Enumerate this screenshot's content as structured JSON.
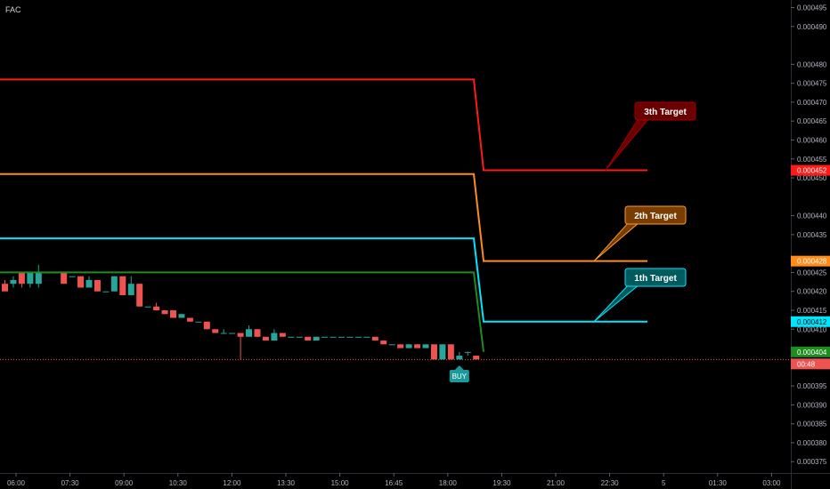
{
  "header": {
    "symbol": "FAC"
  },
  "chart_data": {
    "type": "candlestick",
    "ylim": [
      0.000372,
      0.000497
    ],
    "y_ticks": [
      "0.000495",
      "0.000490",
      "0.000480",
      "0.000475",
      "0.000470",
      "0.000465",
      "0.000460",
      "0.000455",
      "0.000450",
      "0.000440",
      "0.000435",
      "0.000425",
      "0.000420",
      "0.000415",
      "0.000410",
      "0.000395",
      "0.000390",
      "0.000385",
      "0.000380",
      "0.000375"
    ],
    "x_ticks": [
      "06:00",
      "07:30",
      "09:00",
      "10:30",
      "12:00",
      "13:30",
      "15:00",
      "16:45",
      "18:00",
      "19:30",
      "21:00",
      "22:30",
      "5",
      "01:30",
      "03:00"
    ],
    "candles": [
      [
        0.000422,
        0.000423,
        0.000421,
        0.00042
      ],
      [
        0.000422,
        0.000424,
        0.000421,
        0.000423
      ],
      [
        0.000425,
        0.000425,
        0.000421,
        0.000422
      ],
      [
        0.000422,
        0.000425,
        0.000421,
        0.000425
      ],
      [
        0.000422,
        0.000427,
        0.000421,
        0.000425
      ],
      [
        0.000425,
        0.000425,
        0.000425,
        0.000425
      ],
      [
        0.000425,
        0.000425,
        0.000425,
        0.000425
      ],
      [
        0.000425,
        0.000425,
        0.000422,
        0.000422
      ],
      [
        0.000424,
        0.000424,
        0.000424,
        0.000424
      ],
      [
        0.000424,
        0.000424,
        0.000421,
        0.000421
      ],
      [
        0.000421,
        0.000424,
        0.000421,
        0.000423
      ],
      [
        0.000423,
        0.000423,
        0.00042,
        0.00042
      ],
      [
        0.00042,
        0.00042,
        0.00042,
        0.00042
      ],
      [
        0.00042,
        0.000424,
        0.00042,
        0.000424
      ],
      [
        0.000424,
        0.000424,
        0.000419,
        0.000419
      ],
      [
        0.000419,
        0.000424,
        0.000419,
        0.000422
      ],
      [
        0.000422,
        0.000422,
        0.000416,
        0.000416
      ],
      [
        0.000416,
        0.000416,
        0.000416,
        0.000416
      ],
      [
        0.000416,
        0.000417,
        0.000415,
        0.000415
      ],
      [
        0.000415,
        0.000415,
        0.000414,
        0.000414
      ],
      [
        0.000415,
        0.000415,
        0.000413,
        0.000413
      ],
      [
        0.000413,
        0.000414,
        0.000413,
        0.000414
      ],
      [
        0.000413,
        0.000413,
        0.000412,
        0.000412
      ],
      [
        0.000412,
        0.000412,
        0.000412,
        0.000412
      ],
      [
        0.000412,
        0.000412,
        0.00041,
        0.00041
      ],
      [
        0.00041,
        0.00041,
        0.000409,
        0.000409
      ],
      [
        0.000409,
        0.00041,
        0.000409,
        0.000409
      ],
      [
        0.000409,
        0.000409,
        0.000409,
        0.000409
      ],
      [
        0.000409,
        0.000409,
        0.000402,
        0.000408
      ],
      [
        0.000408,
        0.000411,
        0.000408,
        0.00041
      ],
      [
        0.00041,
        0.00041,
        0.000408,
        0.000408
      ],
      [
        0.000408,
        0.000408,
        0.000407,
        0.000407
      ],
      [
        0.000407,
        0.00041,
        0.000407,
        0.000409
      ],
      [
        0.000409,
        0.000409,
        0.000408,
        0.000408
      ],
      [
        0.000408,
        0.000408,
        0.000408,
        0.000408
      ],
      [
        0.000408,
        0.000408,
        0.000408,
        0.000408
      ],
      [
        0.000408,
        0.000408,
        0.000407,
        0.000407
      ],
      [
        0.000407,
        0.000408,
        0.000407,
        0.000408
      ],
      [
        0.000408,
        0.000408,
        0.000408,
        0.000408
      ],
      [
        0.000408,
        0.000408,
        0.000408,
        0.000408
      ],
      [
        0.000408,
        0.000408,
        0.000408,
        0.000408
      ],
      [
        0.000408,
        0.000408,
        0.000408,
        0.000408
      ],
      [
        0.000408,
        0.000408,
        0.000408,
        0.000408
      ],
      [
        0.000408,
        0.000408,
        0.000408,
        0.000408
      ],
      [
        0.000408,
        0.000408,
        0.000407,
        0.000407
      ],
      [
        0.000407,
        0.000407,
        0.000406,
        0.000406
      ],
      [
        0.000406,
        0.000406,
        0.000406,
        0.000406
      ],
      [
        0.000406,
        0.000406,
        0.000405,
        0.000405
      ],
      [
        0.000405,
        0.000406,
        0.000405,
        0.000406
      ],
      [
        0.000406,
        0.000406,
        0.000405,
        0.000405
      ],
      [
        0.000405,
        0.000406,
        0.000405,
        0.000406
      ],
      [
        0.000406,
        0.000406,
        0.000402,
        0.000402
      ],
      [
        0.000402,
        0.000406,
        0.000402,
        0.000406
      ],
      [
        0.000406,
        0.000406,
        0.000402,
        0.000402
      ],
      [
        0.000402,
        0.000404,
        0.000402,
        0.000403
      ],
      [
        0.000404,
        0.000404,
        0.000403,
        0.000404
      ],
      [
        0.000403,
        0.000403,
        0.000402,
        0.000402
      ]
    ],
    "target_lines": [
      {
        "name": "3th Target",
        "color": "#ff1a1a",
        "label_bg": "#6b0000",
        "label_border": "#a00000",
        "before": 0.000476,
        "after": 0.000452,
        "tag": "0.000452"
      },
      {
        "name": "2th Target",
        "color": "#ff8c1a",
        "label_bg": "#7a3d00",
        "label_border": "#ff9c2a",
        "before": 0.000451,
        "after": 0.000428,
        "tag": "0.000428"
      },
      {
        "name": "1th Target",
        "color": "#00e5ff",
        "label_bg": "#005a5e",
        "label_border": "#00e5ff",
        "before": 0.000434,
        "after": 0.000412,
        "tag": "0.000412"
      },
      {
        "name": "",
        "color": "#1e8c1e",
        "before": 0.000425,
        "after": 0.000404,
        "tag": "0.000404"
      }
    ],
    "current_price": {
      "value": 0.000402,
      "countdown": "00:48"
    },
    "signals": [
      {
        "label": "BUY",
        "candle_index": 54,
        "color": "#1a9a9a"
      }
    ]
  }
}
